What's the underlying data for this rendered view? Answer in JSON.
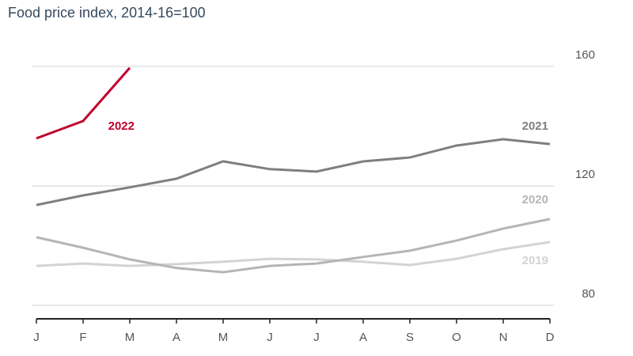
{
  "chart_data": {
    "type": "line",
    "title": "Food price index, 2014-16=100",
    "categories": [
      "J",
      "F",
      "M",
      "A",
      "M",
      "J",
      "J",
      "A",
      "S",
      "O",
      "N",
      "D"
    ],
    "series": [
      {
        "name": "2019",
        "color": "#d3d3d3",
        "values": [
          93.2,
          94.0,
          93.2,
          93.8,
          94.6,
          95.6,
          95.4,
          94.6,
          93.5,
          95.6,
          98.8,
          101.2
        ]
      },
      {
        "name": "2020",
        "color": "#b5b5b5",
        "values": [
          102.8,
          99.3,
          95.4,
          92.5,
          91.1,
          93.2,
          94.0,
          96.2,
          98.3,
          101.7,
          105.7,
          108.9
        ]
      },
      {
        "name": "2021",
        "color": "#7f7f7f",
        "values": [
          113.6,
          116.8,
          119.5,
          122.4,
          128.2,
          125.6,
          124.8,
          128.2,
          129.5,
          133.5,
          135.6,
          134.0
        ]
      },
      {
        "name": "2022",
        "color": "#c0002a",
        "values": [
          135.9,
          141.7,
          159.5,
          null,
          null,
          null,
          null,
          null,
          null,
          null,
          null,
          null
        ]
      }
    ],
    "ylim": [
      75.5,
      165
    ],
    "yticks": [
      80,
      120,
      160
    ],
    "grid": true
  }
}
